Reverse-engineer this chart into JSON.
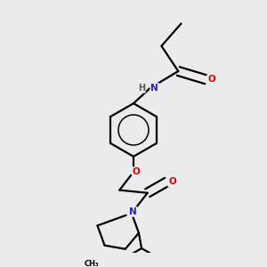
{
  "bg_color": "#ebebeb",
  "atom_colors": {
    "N": "#2020c8",
    "O": "#e00000",
    "H": "#406060",
    "C": "#000000"
  },
  "bond_color": "#000000",
  "bond_width": 1.6,
  "fig_bg": "#ebebeb"
}
